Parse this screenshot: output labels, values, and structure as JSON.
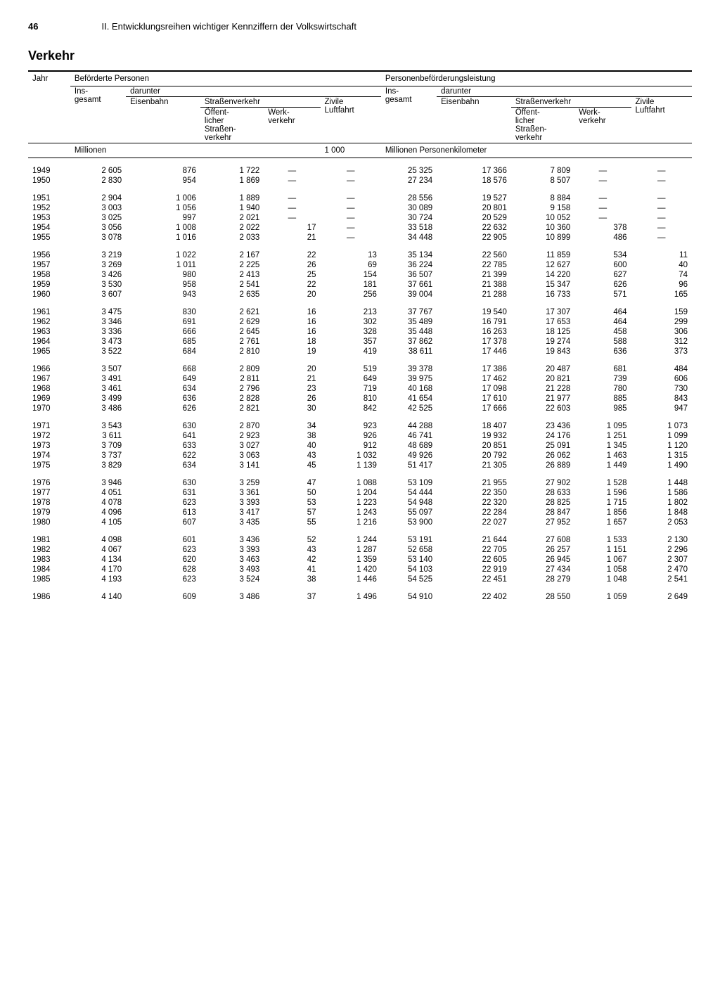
{
  "page_number": "46",
  "chapter_title": "II. Entwicklungsreihen wichtiger Kennziffern der Volkswirtschaft",
  "section_title": "Verkehr",
  "headers": {
    "jahr": "Jahr",
    "befoerderte": "Beförderte Personen",
    "leistung": "Personenbeförderungsleistung",
    "insgesamt": "Ins-\ngesamt",
    "darunter": "darunter",
    "eisenbahn": "Eisenbahn",
    "strassenverkehr": "Straßenverkehr",
    "zivile": "Zivile\nLuftfahrt",
    "oeffentlich": "Öffent-\nlicher\nStraßen-\nverkehr",
    "werkverkehr": "Werk-\nverkehr",
    "unit_millionen": "Millionen",
    "unit_1000": "1 000",
    "unit_pkm": "Millionen Personenkilometer"
  },
  "groups": [
    [
      {
        "year": "1949",
        "c": [
          "2 605",
          "876",
          "1 722",
          "—",
          "—",
          "25 325",
          "17 366",
          "7 809",
          "—",
          "—"
        ]
      },
      {
        "year": "1950",
        "c": [
          "2 830",
          "954",
          "1 869",
          "—",
          "—",
          "27 234",
          "18 576",
          "8 507",
          "—",
          "—"
        ]
      }
    ],
    [
      {
        "year": "1951",
        "c": [
          "2 904",
          "1 006",
          "1 889",
          "—",
          "—",
          "28 556",
          "19 527",
          "8 884",
          "—",
          "—"
        ]
      },
      {
        "year": "1952",
        "c": [
          "3 003",
          "1 056",
          "1 940",
          "—",
          "—",
          "30 089",
          "20 801",
          "9 158",
          "—",
          "—"
        ]
      },
      {
        "year": "1953",
        "c": [
          "3 025",
          "997",
          "2 021",
          "—",
          "—",
          "30 724",
          "20 529",
          "10 052",
          "—",
          "—"
        ]
      },
      {
        "year": "1954",
        "c": [
          "3 056",
          "1 008",
          "2 022",
          "17",
          "—",
          "33 518",
          "22 632",
          "10 360",
          "378",
          "—"
        ]
      },
      {
        "year": "1955",
        "c": [
          "3 078",
          "1 016",
          "2 033",
          "21",
          "—",
          "34 448",
          "22 905",
          "10 899",
          "486",
          "—"
        ]
      }
    ],
    [
      {
        "year": "1956",
        "c": [
          "3 219",
          "1 022",
          "2 167",
          "22",
          "13",
          "35 134",
          "22 560",
          "11 859",
          "534",
          "11"
        ]
      },
      {
        "year": "1957",
        "c": [
          "3 269",
          "1 011",
          "2 225",
          "26",
          "69",
          "36 224",
          "22 785",
          "12 627",
          "600",
          "40"
        ]
      },
      {
        "year": "1958",
        "c": [
          "3 426",
          "980",
          "2 413",
          "25",
          "154",
          "36 507",
          "21 399",
          "14 220",
          "627",
          "74"
        ]
      },
      {
        "year": "1959",
        "c": [
          "3 530",
          "958",
          "2 541",
          "22",
          "181",
          "37 661",
          "21 388",
          "15 347",
          "626",
          "96"
        ]
      },
      {
        "year": "1960",
        "c": [
          "3 607",
          "943",
          "2 635",
          "20",
          "256",
          "39 004",
          "21 288",
          "16 733",
          "571",
          "165"
        ]
      }
    ],
    [
      {
        "year": "1961",
        "c": [
          "3 475",
          "830",
          "2 621",
          "16",
          "213",
          "37 767",
          "19 540",
          "17 307",
          "464",
          "159"
        ]
      },
      {
        "year": "1962",
        "c": [
          "3 346",
          "691",
          "2 629",
          "16",
          "302",
          "35 489",
          "16 791",
          "17 653",
          "464",
          "299"
        ]
      },
      {
        "year": "1963",
        "c": [
          "3 336",
          "666",
          "2 645",
          "16",
          "328",
          "35 448",
          "16 263",
          "18 125",
          "458",
          "306"
        ]
      },
      {
        "year": "1964",
        "c": [
          "3 473",
          "685",
          "2 761",
          "18",
          "357",
          "37 862",
          "17 378",
          "19 274",
          "588",
          "312"
        ]
      },
      {
        "year": "1965",
        "c": [
          "3 522",
          "684",
          "2 810",
          "19",
          "419",
          "38 611",
          "17 446",
          "19 843",
          "636",
          "373"
        ]
      }
    ],
    [
      {
        "year": "1966",
        "c": [
          "3 507",
          "668",
          "2 809",
          "20",
          "519",
          "39 378",
          "17 386",
          "20 487",
          "681",
          "484"
        ]
      },
      {
        "year": "1967",
        "c": [
          "3 491",
          "649",
          "2 811",
          "21",
          "649",
          "39 975",
          "17 462",
          "20 821",
          "739",
          "606"
        ]
      },
      {
        "year": "1968",
        "c": [
          "3 461",
          "634",
          "2 796",
          "23",
          "719",
          "40 168",
          "17 098",
          "21 228",
          "780",
          "730"
        ]
      },
      {
        "year": "1969",
        "c": [
          "3 499",
          "636",
          "2 828",
          "26",
          "810",
          "41 654",
          "17 610",
          "21 977",
          "885",
          "843"
        ]
      },
      {
        "year": "1970",
        "c": [
          "3 486",
          "626",
          "2 821",
          "30",
          "842",
          "42 525",
          "17 666",
          "22 603",
          "985",
          "947"
        ]
      }
    ],
    [
      {
        "year": "1971",
        "c": [
          "3 543",
          "630",
          "2 870",
          "34",
          "923",
          "44 288",
          "18 407",
          "23 436",
          "1 095",
          "1 073"
        ]
      },
      {
        "year": "1972",
        "c": [
          "3 611",
          "641",
          "2 923",
          "38",
          "926",
          "46 741",
          "19 932",
          "24 176",
          "1 251",
          "1 099"
        ]
      },
      {
        "year": "1973",
        "c": [
          "3 709",
          "633",
          "3 027",
          "40",
          "912",
          "48 689",
          "20 851",
          "25 091",
          "1 345",
          "1 120"
        ]
      },
      {
        "year": "1974",
        "c": [
          "3 737",
          "622",
          "3 063",
          "43",
          "1 032",
          "49 926",
          "20 792",
          "26 062",
          "1 463",
          "1 315"
        ]
      },
      {
        "year": "1975",
        "c": [
          "3 829",
          "634",
          "3 141",
          "45",
          "1 139",
          "51 417",
          "21 305",
          "26 889",
          "1 449",
          "1 490"
        ]
      }
    ],
    [
      {
        "year": "1976",
        "c": [
          "3 946",
          "630",
          "3 259",
          "47",
          "1 088",
          "53 109",
          "21 955",
          "27 902",
          "1 528",
          "1 448"
        ]
      },
      {
        "year": "1977",
        "c": [
          "4 051",
          "631",
          "3 361",
          "50",
          "1 204",
          "54 444",
          "22 350",
          "28 633",
          "1 596",
          "1 586"
        ]
      },
      {
        "year": "1978",
        "c": [
          "4 078",
          "623",
          "3 393",
          "53",
          "1 223",
          "54 948",
          "22 320",
          "28 825",
          "1 715",
          "1 802"
        ]
      },
      {
        "year": "1979",
        "c": [
          "4 096",
          "613",
          "3 417",
          "57",
          "1 243",
          "55 097",
          "22 284",
          "28 847",
          "1 856",
          "1 848"
        ]
      },
      {
        "year": "1980",
        "c": [
          "4 105",
          "607",
          "3 435",
          "55",
          "1 216",
          "53 900",
          "22 027",
          "27 952",
          "1 657",
          "2 053"
        ]
      }
    ],
    [
      {
        "year": "1981",
        "c": [
          "4 098",
          "601",
          "3 436",
          "52",
          "1 244",
          "53 191",
          "21 644",
          "27 608",
          "1 533",
          "2 130"
        ]
      },
      {
        "year": "1982",
        "c": [
          "4 067",
          "623",
          "3 393",
          "43",
          "1 287",
          "52 658",
          "22 705",
          "26 257",
          "1 151",
          "2 296"
        ]
      },
      {
        "year": "1983",
        "c": [
          "4 134",
          "620",
          "3 463",
          "42",
          "1 359",
          "53 140",
          "22 605",
          "26 945",
          "1 067",
          "2 307"
        ]
      },
      {
        "year": "1984",
        "c": [
          "4 170",
          "628",
          "3 493",
          "41",
          "1 420",
          "54 103",
          "22 919",
          "27 434",
          "1 058",
          "2 470"
        ]
      },
      {
        "year": "1985",
        "c": [
          "4 193",
          "623",
          "3 524",
          "38",
          "1 446",
          "54 525",
          "22 451",
          "28 279",
          "1 048",
          "2 541"
        ]
      }
    ],
    [
      {
        "year": "1986",
        "c": [
          "4 140",
          "609",
          "3 486",
          "37",
          "1 496",
          "54 910",
          "22 402",
          "28 550",
          "1 059",
          "2 649"
        ]
      }
    ]
  ]
}
